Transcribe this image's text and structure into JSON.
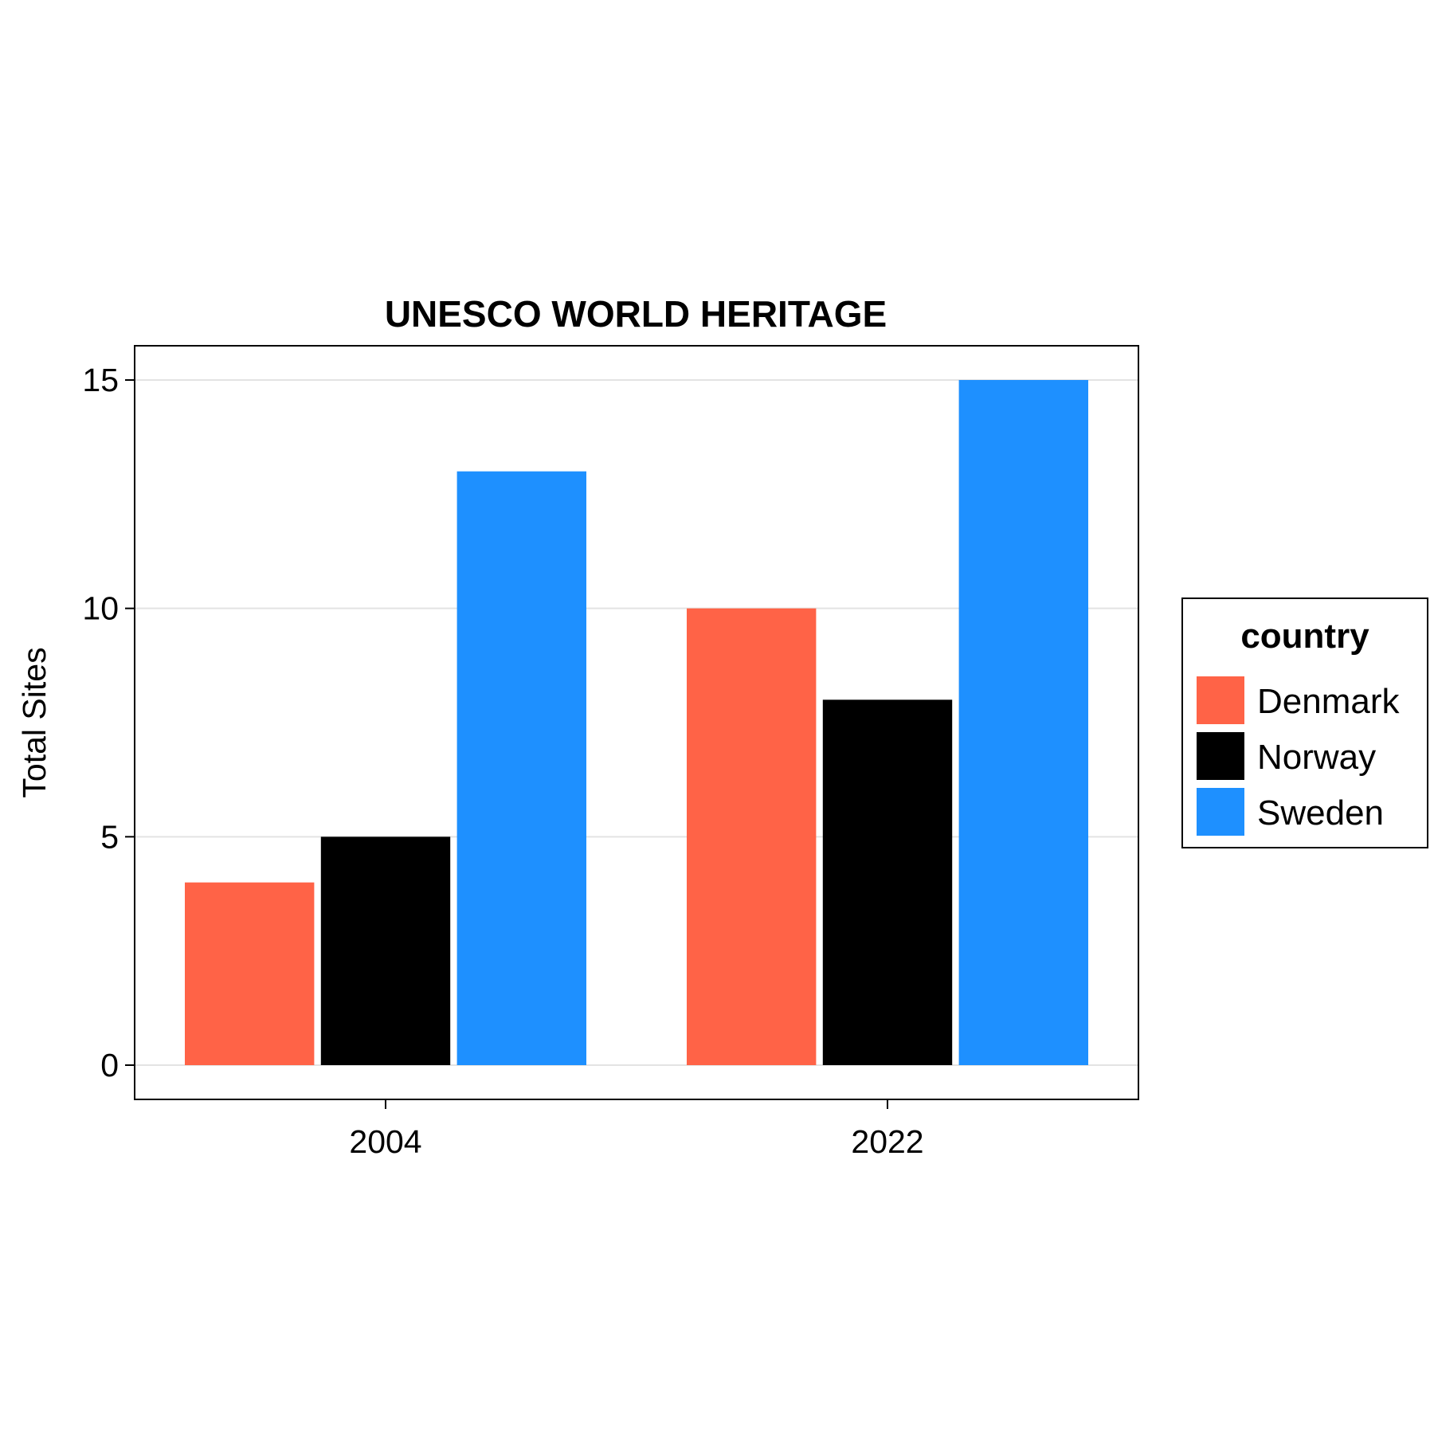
{
  "chart_data": {
    "type": "bar",
    "title": "UNESCO WORLD HERITAGE",
    "xlabel": "",
    "ylabel": "Total Sites",
    "categories": [
      "2004",
      "2022"
    ],
    "series": [
      {
        "name": "Denmark",
        "values": [
          4,
          10
        ],
        "color": "#ff6347"
      },
      {
        "name": "Norway",
        "values": [
          5,
          8
        ],
        "color": "#000000"
      },
      {
        "name": "Sweden",
        "values": [
          13,
          15
        ],
        "color": "#1e90ff"
      }
    ],
    "ylim": [
      -0.75,
      15.75
    ],
    "yticks": [
      0,
      5,
      10,
      15
    ],
    "grid": true,
    "legend": {
      "title": "country",
      "position": "right"
    }
  }
}
